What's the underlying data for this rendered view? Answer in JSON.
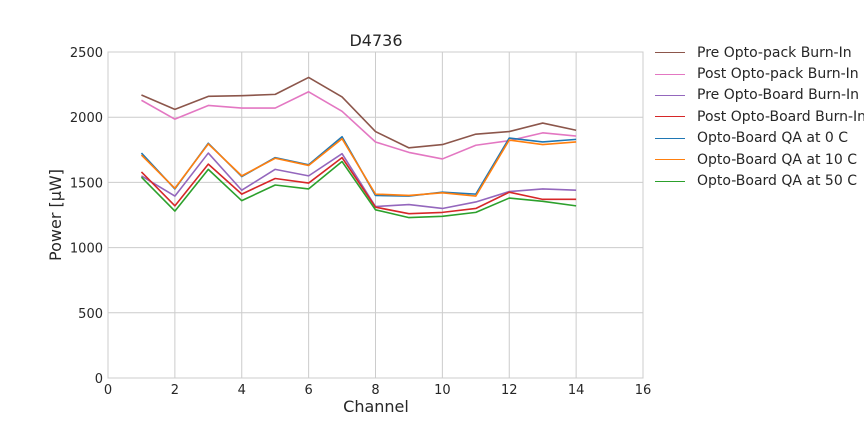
{
  "chart_data": {
    "type": "line",
    "title": "D4736",
    "xlabel": "Channel",
    "ylabel": "Power [μW]",
    "xlim": [
      0,
      16
    ],
    "ylim": [
      0,
      2500
    ],
    "xticks": [
      0,
      2,
      4,
      6,
      8,
      10,
      12,
      14,
      16
    ],
    "yticks": [
      0,
      500,
      1000,
      1500,
      2000,
      2500
    ],
    "grid": true,
    "legend_position": "outside-right-top",
    "x": [
      1,
      2,
      3,
      4,
      5,
      6,
      7,
      8,
      9,
      10,
      11,
      12,
      13,
      14
    ],
    "series": [
      {
        "name": "Pre Opto-pack Burn-In",
        "color": "#8c564b",
        "values": [
          2170,
          2060,
          2160,
          2165,
          2175,
          2305,
          2155,
          1890,
          1765,
          1790,
          1870,
          1890,
          1955,
          1900
        ]
      },
      {
        "name": "Post Opto-pack Burn-In",
        "color": "#e377c2",
        "values": [
          2130,
          1985,
          2090,
          2070,
          2070,
          2195,
          2045,
          1810,
          1730,
          1680,
          1785,
          1820,
          1880,
          1855
        ]
      },
      {
        "name": "Pre Opto-Board Burn-In",
        "color": "#9467bd",
        "values": [
          1550,
          1395,
          1725,
          1440,
          1600,
          1550,
          1720,
          1315,
          1330,
          1300,
          1350,
          1430,
          1450,
          1440
        ]
      },
      {
        "name": "Post Opto-Board Burn-In",
        "color": "#d62728",
        "values": [
          1580,
          1320,
          1640,
          1410,
          1530,
          1495,
          1690,
          1310,
          1260,
          1270,
          1300,
          1425,
          1370,
          1370
        ]
      },
      {
        "name": "Opto-Board QA at 0 C",
        "color": "#1f77b4",
        "values": [
          1725,
          1450,
          1800,
          1545,
          1690,
          1635,
          1850,
          1400,
          1395,
          1425,
          1410,
          1840,
          1810,
          1830
        ]
      },
      {
        "name": "Opto-Board QA at 10 C",
        "color": "#ff7f0e",
        "values": [
          1710,
          1455,
          1795,
          1550,
          1685,
          1630,
          1835,
          1410,
          1400,
          1420,
          1395,
          1825,
          1790,
          1810
        ]
      },
      {
        "name": "Opto-Board QA at 50 C",
        "color": "#2ca02c",
        "values": [
          1540,
          1280,
          1600,
          1360,
          1480,
          1450,
          1660,
          1290,
          1230,
          1240,
          1270,
          1380,
          1355,
          1320
        ]
      }
    ]
  }
}
